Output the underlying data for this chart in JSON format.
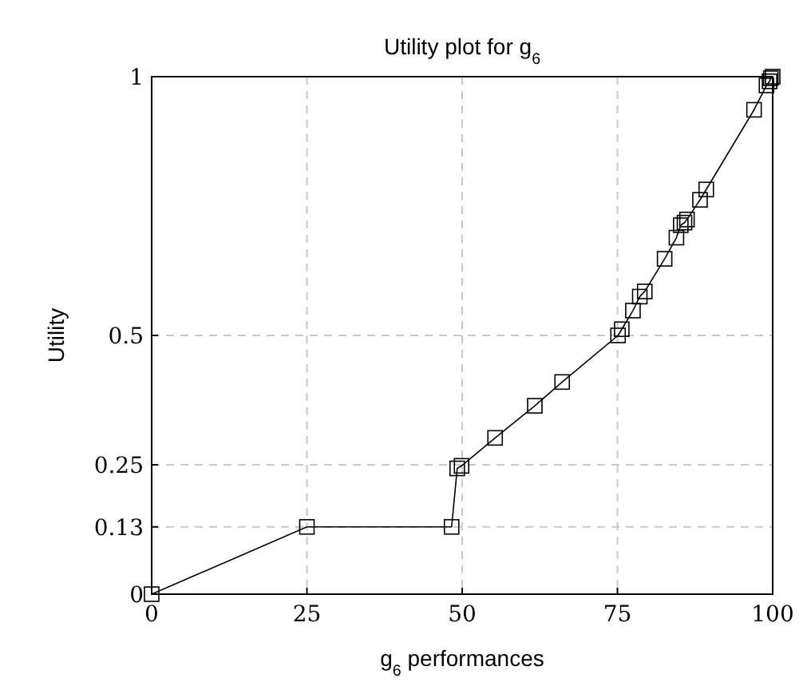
{
  "chart_data": {
    "type": "line",
    "title": "Utility plot for g$_{6}$",
    "xlabel": "g$_{6}$ performances",
    "ylabel": "Utility",
    "x": [
      0,
      25,
      48.3,
      49.2,
      49.9,
      55.3,
      61.7,
      66.1,
      75.1,
      75.7,
      77.5,
      78.6,
      79.4,
      82.6,
      84.5,
      85.2,
      85.8,
      86.2,
      88.3,
      89.3,
      97.0,
      99.0,
      99.5,
      99.7,
      100
    ],
    "series": [
      {
        "color": "#000000",
        "values": [
          0,
          0.13,
          0.13,
          0.243,
          0.248,
          0.302,
          0.364,
          0.41,
          0.5,
          0.512,
          0.548,
          0.575,
          0.585,
          0.648,
          0.689,
          0.713,
          0.718,
          0.724,
          0.762,
          0.782,
          0.936,
          0.983,
          0.991,
          0.997,
          1
        ]
      }
    ],
    "xlim": [
      0,
      100
    ],
    "ylim": [
      0,
      1
    ],
    "xticks": [
      0,
      25,
      50,
      75,
      100
    ],
    "yticks": [
      0,
      0.13,
      0.25,
      0.5,
      1
    ],
    "grid": true,
    "marker": "square",
    "line_style": "solid"
  }
}
